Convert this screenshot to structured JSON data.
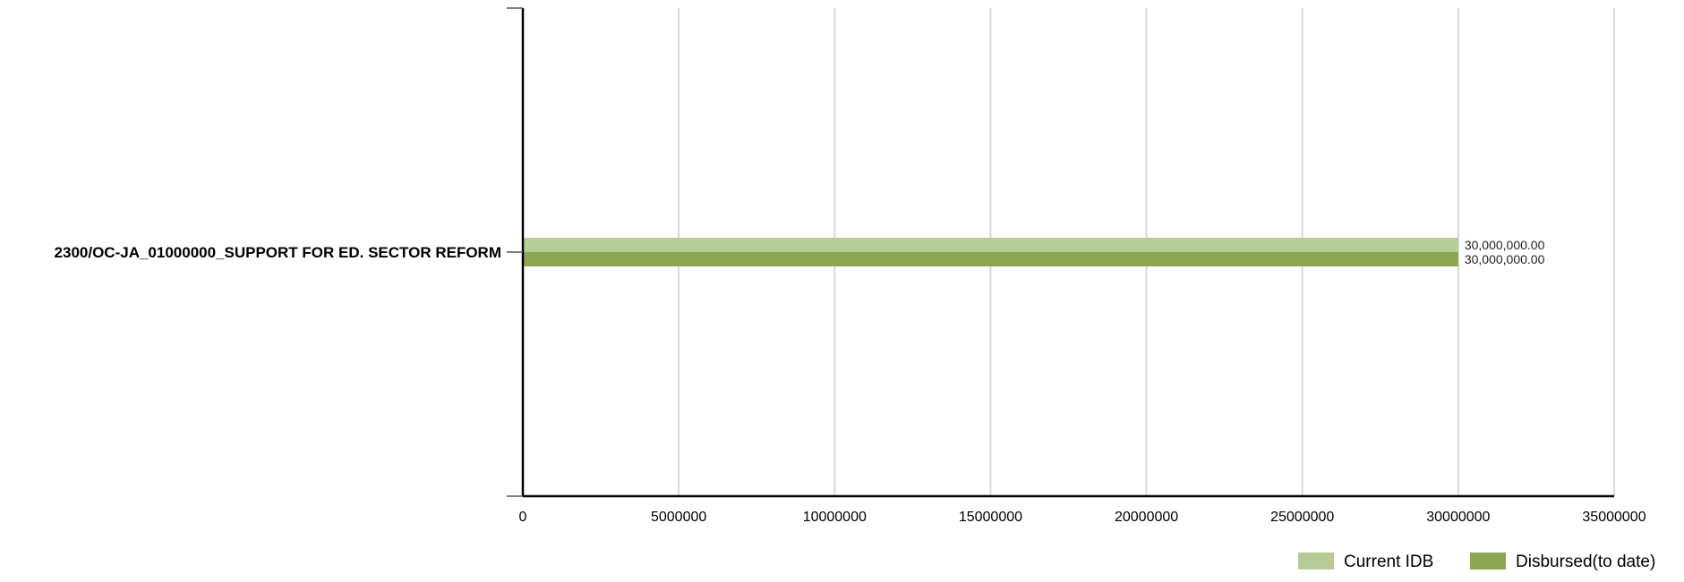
{
  "chart_data": {
    "type": "bar",
    "orientation": "horizontal",
    "categories": [
      "2300/OC-JA_01000000_SUPPORT FOR ED. SECTOR REFORM"
    ],
    "series": [
      {
        "name": "Current IDB",
        "values": [
          30000000
        ],
        "labels": [
          "30,000,000.00"
        ],
        "color": "#b5cc96"
      },
      {
        "name": "Disbursed(to date)",
        "values": [
          30000000
        ],
        "labels": [
          "30,000,000.00"
        ],
        "color": "#8aa84f"
      }
    ],
    "xlim": [
      0,
      35000000
    ],
    "xticks": [
      0,
      5000000,
      10000000,
      15000000,
      20000000,
      25000000,
      30000000,
      35000000
    ],
    "xtick_labels": [
      "0",
      "5000000",
      "10000000",
      "15000000",
      "20000000",
      "25000000",
      "30000000",
      "35000000"
    ],
    "grid": true,
    "grid_color": "#d9d9d9",
    "axis_color": "#000000",
    "legend_position": "bottom-right",
    "title": "",
    "xlabel": "",
    "ylabel": ""
  }
}
